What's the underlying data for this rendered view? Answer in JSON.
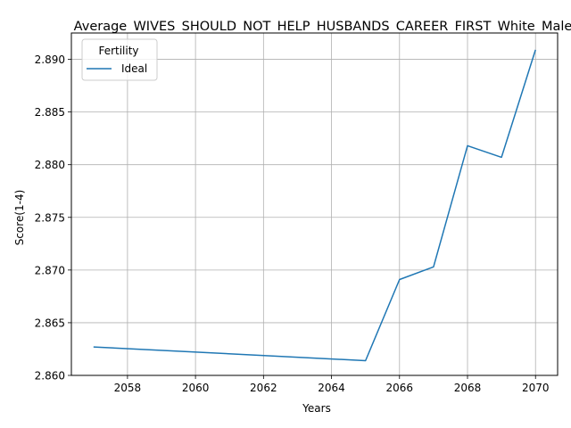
{
  "chart_data": {
    "type": "line",
    "title": "Average_WIVES_SHOULD_NOT_HELP_HUSBANDS_CAREER_FIRST_White_Male",
    "xlabel": "Years",
    "ylabel": "Score(1-4)",
    "xlim": [
      2056.35,
      2070.65
    ],
    "ylim": [
      2.86,
      2.8925
    ],
    "xticks": [
      2058,
      2060,
      2062,
      2064,
      2066,
      2068,
      2070
    ],
    "yticks": [
      2.86,
      2.865,
      2.87,
      2.875,
      2.88,
      2.885,
      2.89
    ],
    "xtick_labels": [
      "2058",
      "2060",
      "2062",
      "2064",
      "2066",
      "2068",
      "2070"
    ],
    "ytick_labels": [
      "2.860",
      "2.865",
      "2.870",
      "2.875",
      "2.880",
      "2.885",
      "2.890"
    ],
    "grid": true,
    "legend": {
      "title": "Fertility",
      "placement": "upper-left"
    },
    "series": [
      {
        "name": "Ideal",
        "color": "#1f77b4",
        "x": [
          2057,
          2065,
          2066,
          2067,
          2068,
          2069,
          2070
        ],
        "y": [
          2.8627,
          2.8614,
          2.8691,
          2.8703,
          2.8818,
          2.8807,
          2.8909
        ]
      }
    ]
  }
}
